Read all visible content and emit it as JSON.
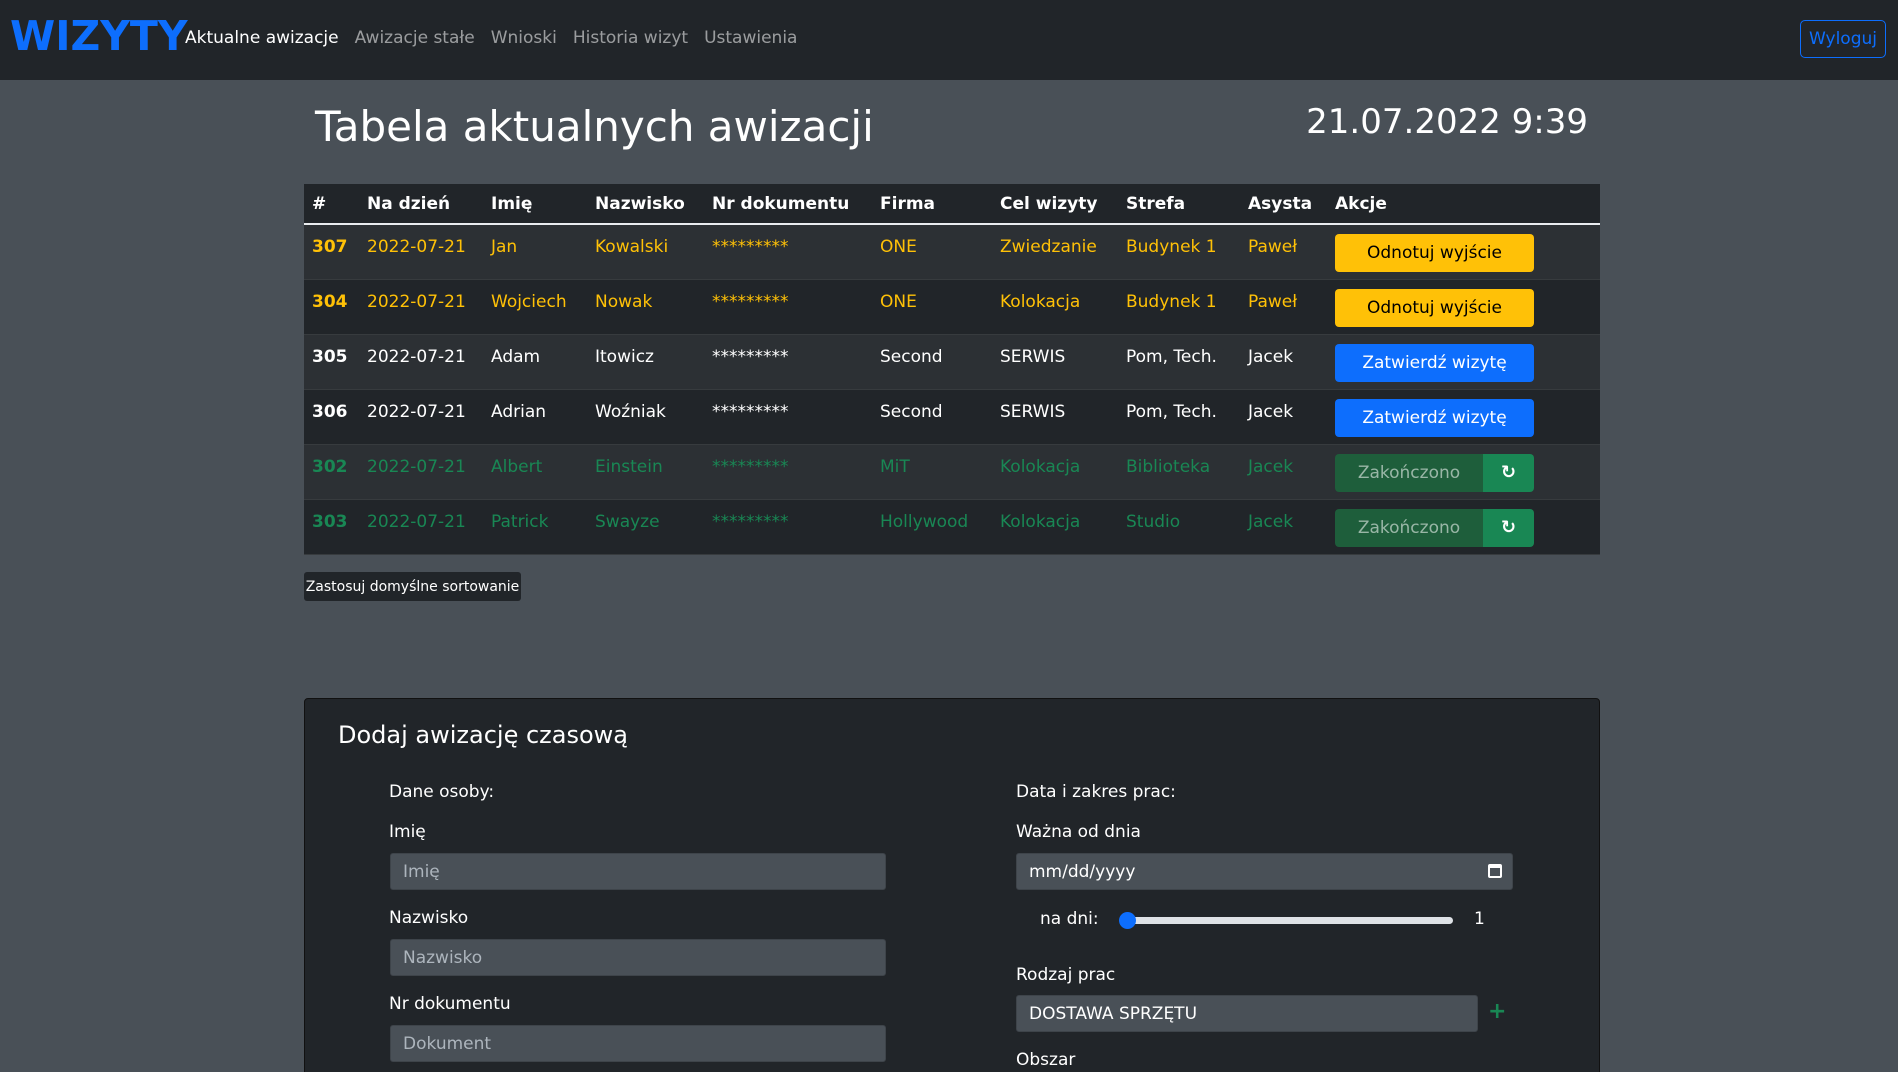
{
  "brand": "WIZYTY",
  "nav": {
    "items": [
      "Aktualne awizacje",
      "Awizacje stałe",
      "Wnioski",
      "Historia wizyt",
      "Ustawienia"
    ],
    "logout": "Wyloguj"
  },
  "page": {
    "title": "Tabela aktualnych awizacji",
    "clock": "21.07.2022 9:39"
  },
  "table": {
    "headers": [
      "#",
      "Na dzień",
      "Imię",
      "Nazwisko",
      "Nr dokumentu",
      "Firma",
      "Cel wizyty",
      "Strefa",
      "Asysta",
      "Akcje"
    ],
    "rows": [
      {
        "id": "307",
        "date": "2022-07-21",
        "first": "Jan",
        "last": "Kowalski",
        "doc": "*********",
        "company": "ONE",
        "purpose": "Zwiedzanie",
        "zone": "Budynek 1",
        "assist": "Paweł",
        "action": "Odnotuj wyjście",
        "state": "warning"
      },
      {
        "id": "304",
        "date": "2022-07-21",
        "first": "Wojciech",
        "last": "Nowak",
        "doc": "*********",
        "company": "ONE",
        "purpose": "Kolokacja",
        "zone": "Budynek 1",
        "assist": "Paweł",
        "action": "Odnotuj wyjście",
        "state": "warning"
      },
      {
        "id": "305",
        "date": "2022-07-21",
        "first": "Adam",
        "last": "Itowicz",
        "doc": "*********",
        "company": "Second",
        "purpose": "SERWIS",
        "zone": "Pom, Tech.",
        "assist": "Jacek",
        "action": "Zatwierdź wizytę",
        "state": "pending"
      },
      {
        "id": "306",
        "date": "2022-07-21",
        "first": "Adrian",
        "last": "Woźniak",
        "doc": "*********",
        "company": "Second",
        "purpose": "SERWIS",
        "zone": "Pom, Tech.",
        "assist": "Jacek",
        "action": "Zatwierdź wizytę",
        "state": "pending"
      },
      {
        "id": "302",
        "date": "2022-07-21",
        "first": "Albert",
        "last": "Einstein",
        "doc": "*********",
        "company": "MiT",
        "purpose": "Kolokacja",
        "zone": "Biblioteka",
        "assist": "Jacek",
        "action": "Zakończono",
        "state": "done"
      },
      {
        "id": "303",
        "date": "2022-07-21",
        "first": "Patrick",
        "last": "Swayze",
        "doc": "*********",
        "company": "Hollywood",
        "purpose": "Kolokacja",
        "zone": "Studio",
        "assist": "Jacek",
        "action": "Zakończono",
        "state": "done"
      }
    ]
  },
  "sort_button": "Zastosuj domyślne sortowanie",
  "form": {
    "title": "Dodaj awizację czasową",
    "person_section": "Dane osoby:",
    "work_section": "Data i zakres prac:",
    "first_label": "Imię",
    "first_placeholder": "Imię",
    "last_label": "Nazwisko",
    "last_placeholder": "Nazwisko",
    "doc_label": "Nr dokumentu",
    "doc_placeholder": "Dokument",
    "valid_from_label": "Ważna od dnia",
    "valid_from_value": "mm/dd/yyyy",
    "days_label": "na dni:",
    "days_value": "1",
    "days_fraction": 0,
    "work_type_label": "Rodzaj prac",
    "work_type_value": "DOSTAWA SPRZĘTU",
    "area_label": "Obszar"
  },
  "colors": {
    "warning": "#ffc107",
    "primary": "#0d6efd",
    "success": "#198754"
  }
}
